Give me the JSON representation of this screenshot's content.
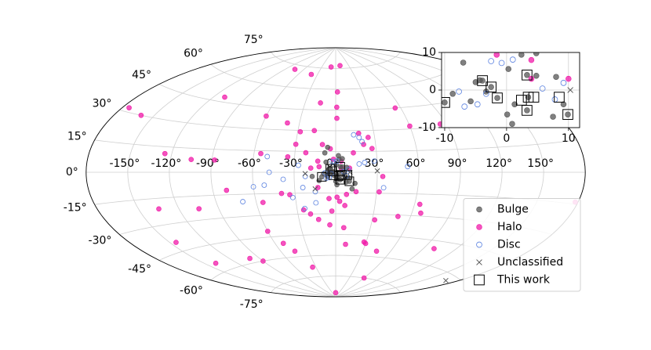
{
  "chart_data": {
    "type": "scatter",
    "projection": "aitoff",
    "xlim": [
      -180,
      180
    ],
    "ylim": [
      -90,
      90
    ],
    "grid": true,
    "legend": "lower right",
    "xticks": [
      {
        "value": -150,
        "label": "-150°"
      },
      {
        "value": -120,
        "label": "-120°"
      },
      {
        "value": -90,
        "label": "-90°"
      },
      {
        "value": -60,
        "label": "-60°"
      },
      {
        "value": -30,
        "label": "-30°"
      },
      {
        "value": 0,
        "label": "0°"
      },
      {
        "value": 30,
        "label": "30°"
      },
      {
        "value": 60,
        "label": "60°"
      },
      {
        "value": 90,
        "label": "90°"
      },
      {
        "value": 120,
        "label": "120°"
      },
      {
        "value": 150,
        "label": "150°"
      }
    ],
    "yticks": [
      {
        "value": -75,
        "label": "-75°"
      },
      {
        "value": -60,
        "label": "-60°"
      },
      {
        "value": -45,
        "label": "-45°"
      },
      {
        "value": -30,
        "label": "-30°"
      },
      {
        "value": -15,
        "label": "-15°"
      },
      {
        "value": 0,
        "label": "0°"
      },
      {
        "value": 15,
        "label": "15°"
      },
      {
        "value": 30,
        "label": "30°"
      },
      {
        "value": 45,
        "label": "45°"
      },
      {
        "value": 60,
        "label": "60°"
      },
      {
        "value": 75,
        "label": "75°"
      }
    ],
    "series": [
      {
        "name": "Bulge",
        "color": "#555555",
        "marker": "circle",
        "x": [
          -7,
          -5,
          -3.3,
          -4.3,
          0.3,
          1.3,
          0.1,
          0.9,
          4.8,
          8,
          9.2,
          7.5,
          4.8,
          2.4,
          -5.8,
          -8.7,
          -10,
          -3.9,
          -1.5,
          3.3,
          3.3,
          9.9,
          3.5,
          -2.5,
          -8,
          -6,
          2,
          -12,
          14,
          -17,
          12
        ],
        "values": [
          7.3,
          2.1,
          -0.4,
          2.6,
          5.6,
          -3.8,
          -6.5,
          -9,
          3.8,
          3.5,
          -3.8,
          -7.1,
          9.8,
          9.4,
          -3,
          -1,
          -3.3,
          2.5,
          -2.1,
          4,
          -5.4,
          -6.5,
          -1.9,
          0.8,
          14,
          18,
          12,
          -6,
          -8,
          -3,
          -12
        ]
      },
      {
        "name": "Halo",
        "color": "#f01aa8",
        "marker": "circle",
        "x": [
          -175,
          -160,
          -110,
          -75,
          -40,
          -10,
          10,
          2,
          -15,
          1,
          1,
          -60,
          -40,
          55,
          60,
          85,
          -28,
          -17,
          18,
          25,
          21,
          -10,
          -4,
          27,
          -30,
          13,
          -55,
          -105,
          -88,
          -125,
          -35,
          -22,
          -13,
          -18,
          4,
          4,
          10,
          34,
          32,
          15,
          -13,
          -40,
          -34,
          -5,
          1,
          3,
          7,
          8,
          -80,
          -135,
          -105,
          -55,
          -25,
          32,
          50,
          67,
          64,
          -3,
          -20,
          -14,
          -60,
          -52,
          -45,
          -145,
          -140,
          -100,
          -90,
          -35,
          28,
          30,
          45,
          100,
          178,
          0,
          60,
          -5,
          7,
          10,
          -12,
          -1.6
        ],
        "values": [
          32,
          30,
          48,
          72,
          70,
          76,
          77,
          58,
          50,
          47,
          39,
          39,
          35,
          45,
          32,
          32,
          29,
          30,
          28,
          25,
          20,
          20,
          17,
          17,
          20,
          14,
          13,
          8,
          8,
          11,
          11,
          14,
          8,
          3,
          8,
          3,
          3,
          -3,
          -14,
          -14,
          -11,
          -15,
          -16,
          -19,
          -18,
          -21,
          -24,
          -16,
          -12,
          -21,
          -23,
          -21,
          -27,
          -34,
          -31,
          -28,
          -22,
          -28,
          -30,
          -34,
          -41,
          -50,
          -56,
          -40,
          -55,
          -57,
          -60,
          -68,
          -50,
          -51,
          -56,
          -50,
          -14,
          -87,
          -75,
          -38,
          -40,
          -52,
          4,
          9.4
        ]
      },
      {
        "name": "Disc",
        "color": "#5b82e0",
        "marker": "circle-open",
        "x": [
          -50,
          -60,
          -52,
          -38,
          -24,
          -24,
          -32,
          -15,
          14,
          18,
          20,
          17,
          21,
          52,
          35,
          -15,
          -48,
          -70,
          -27,
          -22,
          28,
          -7.7,
          -6.8,
          -4.7,
          -2.5,
          1,
          5.8,
          7.8,
          9.2,
          -3.3,
          -0.8
        ],
        "values": [
          11,
          -10,
          -9,
          -5,
          -11,
          -26,
          -18,
          -22,
          27,
          25,
          22,
          6,
          7,
          4,
          -11,
          -14,
          0,
          -20,
          5,
          -3,
          8,
          -0.4,
          -4.4,
          -3.8,
          7.7,
          8.1,
          0.4,
          -2.5,
          1.9,
          -1,
          7.2
        ]
      },
      {
        "name": "Unclassified",
        "color": "#555555",
        "marker": "cross",
        "x": [
          -22,
          -15,
          30,
          10.3,
          170
        ],
        "values": [
          -1,
          -12,
          1,
          0,
          -63
        ]
      },
      {
        "name": "This work",
        "color": "#000000",
        "marker": "square-open",
        "x": [
          -10,
          -3.9,
          -2.5,
          -1.5,
          3.3,
          2.4,
          3.5,
          4.4,
          3.3,
          8.5,
          9.9
        ],
        "values": [
          -3.3,
          2.5,
          0.8,
          -2.1,
          4,
          -2.7,
          -1.9,
          -1.9,
          -5.4,
          -1.9,
          -6.5
        ]
      }
    ],
    "inset": {
      "xlim": [
        -10.5,
        11.8
      ],
      "ylim": [
        -10,
        10
      ],
      "xticks": [
        -10,
        0,
        10
      ],
      "yticks": [
        -10,
        0,
        10
      ],
      "grid": true
    }
  }
}
